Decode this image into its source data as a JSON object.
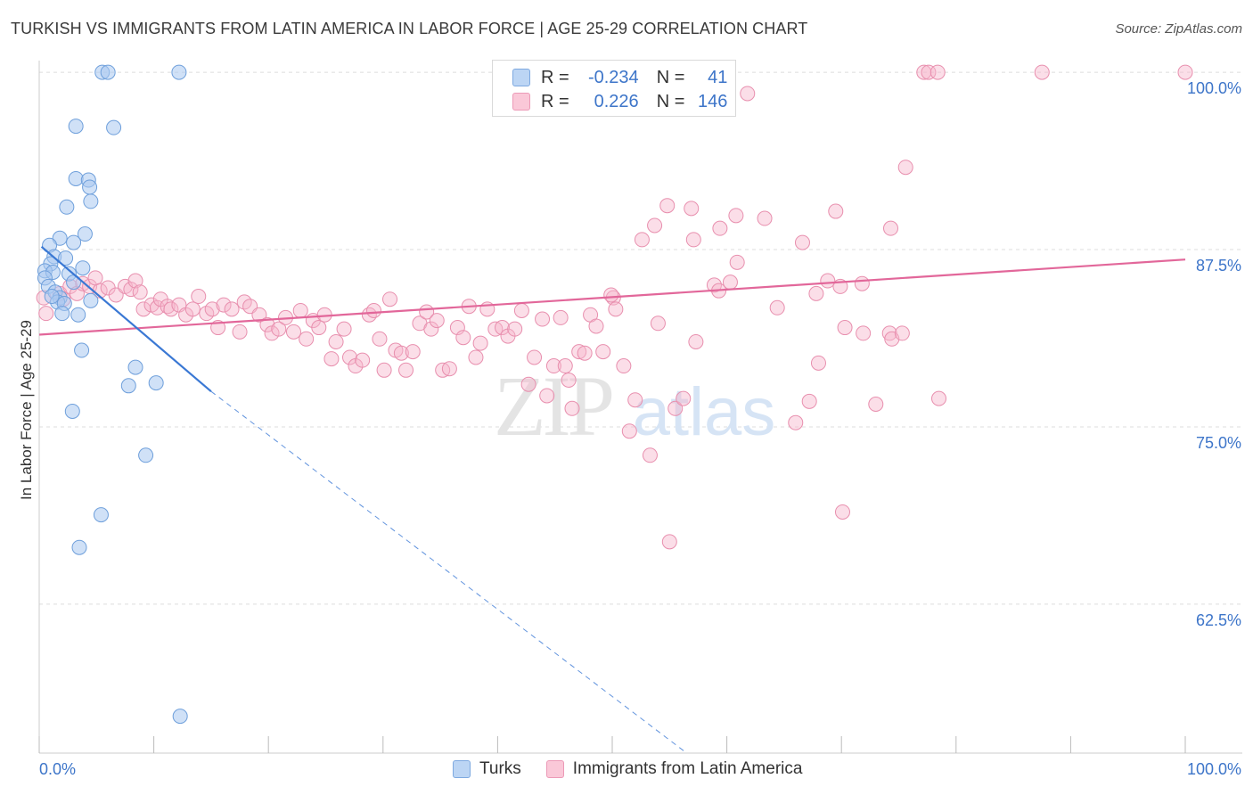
{
  "title": "TURKISH VS IMMIGRANTS FROM LATIN AMERICA IN LABOR FORCE | AGE 25-29 CORRELATION CHART",
  "source": "Source: ZipAtlas.com",
  "watermark": {
    "zip": "ZIP",
    "atlas": "atlas"
  },
  "legend": {
    "rows": [
      {
        "r_label": "R =",
        "r_value": "-0.234",
        "n_label": "N =",
        "n_value": "41",
        "color": "#a9c8f0"
      },
      {
        "r_label": "R =",
        "r_value": "0.226",
        "n_label": "N =",
        "n_value": "146",
        "color": "#f7b6cb"
      }
    ]
  },
  "bottom_legend": [
    {
      "label": "Turks",
      "color": "#a9c8f0"
    },
    {
      "label": "Immigrants from Latin America",
      "color": "#f7b6cb"
    }
  ],
  "colors": {
    "turks_fill": "#a9c8f0",
    "turks_stroke": "#6e9fdb",
    "turks_line": "#3a78d4",
    "latam_fill": "#f7b6cb",
    "latam_stroke": "#e88fae",
    "latam_line": "#e2679a",
    "tick_label": "#3d75c9",
    "grid": "#dcdcdc"
  },
  "chart_data": {
    "type": "scatter",
    "title": "TURKISH VS IMMIGRANTS FROM LATIN AMERICA IN LABOR FORCE | AGE 25-29 CORRELATION CHART",
    "xlabel": "",
    "ylabel": "In Labor Force | Age 25-29",
    "xlim": [
      0,
      100
    ],
    "ylim": [
      52,
      101.2
    ],
    "x_tick_labels": [
      "0.0%",
      "100.0%"
    ],
    "y_ticks": [
      62.5,
      75.0,
      87.5,
      100.0
    ],
    "y_tick_labels": [
      "62.5%",
      "75.0%",
      "87.5%",
      "100.0%"
    ],
    "grid": true,
    "legend_position": "top-center",
    "series": [
      {
        "name": "Turks",
        "r": -0.234,
        "n": 41,
        "trend": {
          "x0": 0.2,
          "y0": 87.7,
          "x1": 15.0,
          "y1": 77.5,
          "dash_x_end": 56.5,
          "dash_y_end": 52.0
        },
        "points": [
          [
            5.5,
            100
          ],
          [
            6.0,
            100
          ],
          [
            12.2,
            100
          ],
          [
            3.2,
            96.2
          ],
          [
            6.5,
            96.1
          ],
          [
            3.2,
            92.5
          ],
          [
            4.3,
            92.4
          ],
          [
            4.4,
            91.9
          ],
          [
            4.5,
            90.9
          ],
          [
            2.4,
            90.5
          ],
          [
            4.0,
            88.6
          ],
          [
            1.8,
            88.3
          ],
          [
            3.0,
            88.0
          ],
          [
            0.9,
            87.8
          ],
          [
            1.3,
            87.0
          ],
          [
            2.3,
            86.9
          ],
          [
            1.0,
            86.5
          ],
          [
            3.8,
            86.2
          ],
          [
            0.5,
            86.0
          ],
          [
            1.2,
            85.9
          ],
          [
            2.6,
            85.8
          ],
          [
            0.5,
            85.5
          ],
          [
            3.0,
            85.2
          ],
          [
            0.8,
            84.9
          ],
          [
            1.4,
            84.5
          ],
          [
            1.8,
            84.1
          ],
          [
            1.6,
            83.8
          ],
          [
            2.2,
            83.7
          ],
          [
            4.5,
            83.9
          ],
          [
            2.0,
            83.0
          ],
          [
            3.4,
            82.9
          ],
          [
            3.7,
            80.4
          ],
          [
            8.4,
            79.2
          ],
          [
            7.8,
            77.9
          ],
          [
            10.2,
            78.1
          ],
          [
            2.9,
            76.1
          ],
          [
            9.3,
            73.0
          ],
          [
            5.4,
            68.8
          ],
          [
            3.5,
            66.5
          ],
          [
            12.3,
            54.6
          ],
          [
            1.1,
            84.2
          ]
        ]
      },
      {
        "name": "Immigrants from Latin America",
        "r": 0.226,
        "n": 146,
        "trend": {
          "x0": 0,
          "y0": 81.5,
          "x1": 100,
          "y1": 86.8
        },
        "points": [
          [
            77.2,
            100
          ],
          [
            77.6,
            100
          ],
          [
            78.4,
            100
          ],
          [
            87.5,
            100
          ],
          [
            100,
            100
          ],
          [
            61.8,
            98.5
          ],
          [
            75.6,
            93.3
          ],
          [
            54.8,
            90.6
          ],
          [
            56.9,
            90.4
          ],
          [
            69.5,
            90.2
          ],
          [
            60.8,
            89.9
          ],
          [
            63.3,
            89.7
          ],
          [
            53.7,
            89.2
          ],
          [
            59.4,
            89.0
          ],
          [
            74.3,
            89.0
          ],
          [
            52.6,
            88.2
          ],
          [
            57.1,
            88.2
          ],
          [
            66.6,
            88.0
          ],
          [
            60.9,
            86.6
          ],
          [
            58.9,
            85.0
          ],
          [
            60.3,
            85.2
          ],
          [
            69.9,
            84.9
          ],
          [
            67.8,
            84.4
          ],
          [
            50.1,
            84.1
          ],
          [
            59.3,
            84.6
          ],
          [
            64.4,
            83.4
          ],
          [
            0.4,
            84.1
          ],
          [
            0.6,
            83.0
          ],
          [
            1.8,
            84.4
          ],
          [
            2.1,
            84.0
          ],
          [
            2.7,
            84.9
          ],
          [
            3.3,
            84.4
          ],
          [
            3.8,
            85.1
          ],
          [
            4.4,
            84.9
          ],
          [
            4.9,
            85.5
          ],
          [
            5.3,
            84.6
          ],
          [
            6.0,
            84.8
          ],
          [
            6.7,
            84.3
          ],
          [
            7.5,
            84.9
          ],
          [
            8.0,
            84.7
          ],
          [
            8.4,
            85.3
          ],
          [
            8.8,
            84.5
          ],
          [
            9.1,
            83.3
          ],
          [
            9.8,
            83.6
          ],
          [
            10.3,
            83.4
          ],
          [
            10.6,
            84.0
          ],
          [
            11.2,
            83.5
          ],
          [
            11.5,
            83.3
          ],
          [
            12.2,
            83.6
          ],
          [
            12.8,
            82.9
          ],
          [
            13.4,
            83.3
          ],
          [
            13.9,
            84.2
          ],
          [
            14.6,
            83.0
          ],
          [
            15.1,
            83.3
          ],
          [
            15.6,
            82.0
          ],
          [
            16.1,
            83.6
          ],
          [
            16.8,
            83.3
          ],
          [
            17.5,
            81.7
          ],
          [
            17.9,
            83.8
          ],
          [
            18.4,
            83.5
          ],
          [
            19.2,
            82.9
          ],
          [
            19.9,
            82.2
          ],
          [
            20.3,
            81.6
          ],
          [
            20.9,
            81.9
          ],
          [
            21.5,
            82.7
          ],
          [
            22.2,
            81.7
          ],
          [
            22.8,
            83.2
          ],
          [
            23.3,
            81.2
          ],
          [
            23.9,
            82.5
          ],
          [
            24.4,
            82.0
          ],
          [
            24.9,
            82.9
          ],
          [
            25.5,
            79.8
          ],
          [
            25.9,
            81.0
          ],
          [
            26.6,
            81.9
          ],
          [
            27.1,
            79.9
          ],
          [
            27.6,
            79.3
          ],
          [
            28.2,
            79.7
          ],
          [
            28.8,
            82.9
          ],
          [
            29.2,
            83.2
          ],
          [
            29.7,
            81.2
          ],
          [
            30.1,
            79.0
          ],
          [
            30.6,
            84.0
          ],
          [
            31.1,
            80.4
          ],
          [
            31.6,
            80.2
          ],
          [
            32.0,
            79.0
          ],
          [
            32.6,
            80.3
          ],
          [
            33.2,
            82.3
          ],
          [
            33.8,
            83.1
          ],
          [
            34.2,
            81.9
          ],
          [
            34.7,
            82.5
          ],
          [
            35.2,
            79.0
          ],
          [
            35.8,
            79.1
          ],
          [
            36.5,
            82.0
          ],
          [
            37.0,
            81.3
          ],
          [
            37.5,
            83.5
          ],
          [
            38.1,
            79.9
          ],
          [
            38.5,
            80.9
          ],
          [
            39.1,
            83.3
          ],
          [
            39.8,
            81.9
          ],
          [
            40.4,
            82.0
          ],
          [
            40.9,
            81.4
          ],
          [
            41.5,
            81.9
          ],
          [
            42.1,
            83.2
          ],
          [
            42.7,
            78.0
          ],
          [
            43.2,
            79.9
          ],
          [
            43.9,
            82.6
          ],
          [
            44.3,
            77.2
          ],
          [
            44.9,
            79.3
          ],
          [
            45.5,
            82.7
          ],
          [
            45.9,
            79.3
          ],
          [
            46.5,
            76.3
          ],
          [
            46.2,
            78.3
          ],
          [
            47.1,
            80.3
          ],
          [
            47.6,
            80.2
          ],
          [
            48.1,
            82.9
          ],
          [
            48.6,
            82.1
          ],
          [
            49.2,
            80.3
          ],
          [
            49.9,
            84.3
          ],
          [
            50.3,
            83.3
          ],
          [
            51.0,
            79.3
          ],
          [
            51.5,
            74.7
          ],
          [
            52.0,
            76.9
          ],
          [
            53.3,
            73.0
          ],
          [
            54.0,
            82.3
          ],
          [
            55.0,
            66.9
          ],
          [
            55.5,
            76.3
          ],
          [
            56.2,
            77.0
          ],
          [
            57.3,
            81.0
          ],
          [
            68.0,
            79.5
          ],
          [
            70.3,
            82.0
          ],
          [
            71.9,
            81.6
          ],
          [
            73.0,
            76.6
          ],
          [
            74.2,
            81.6
          ],
          [
            74.4,
            81.2
          ],
          [
            75.3,
            81.6
          ],
          [
            70.1,
            69.0
          ],
          [
            67.2,
            76.8
          ],
          [
            78.5,
            77.0
          ],
          [
            71.8,
            85.1
          ],
          [
            68.8,
            85.3
          ],
          [
            66.0,
            75.3
          ]
        ]
      }
    ]
  }
}
